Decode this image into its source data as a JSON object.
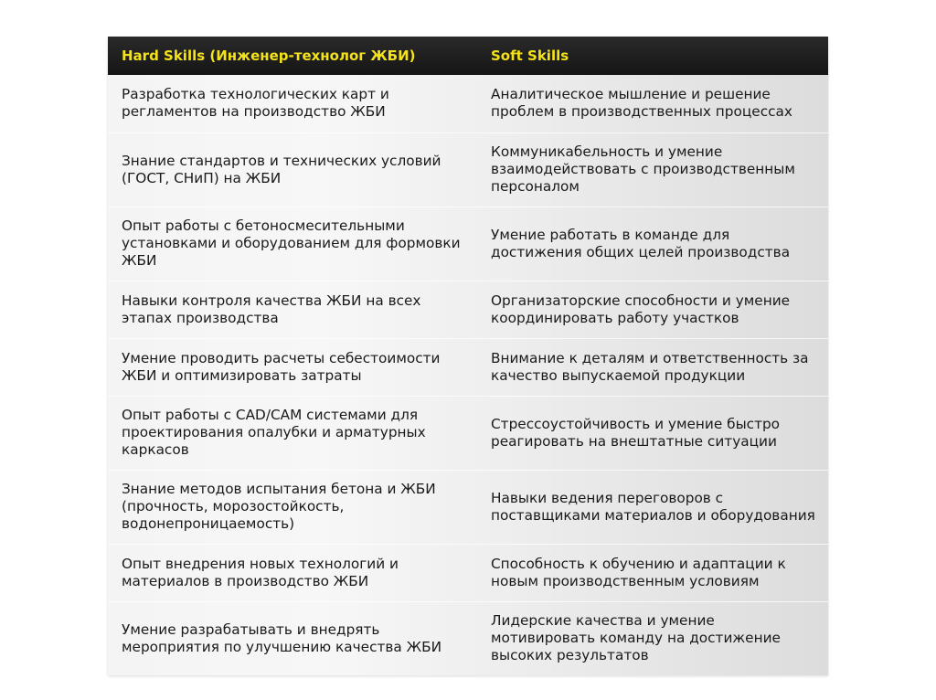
{
  "table": {
    "headers": [
      "Hard Skills (Инженер-технолог ЖБИ)",
      "Soft Skills"
    ],
    "rows": [
      {
        "hard": "Разработка технологических карт и регламентов на производство ЖБИ",
        "soft": "Аналитическое мышление и решение проблем в производственных процессах"
      },
      {
        "hard": "Знание стандартов и технических условий (ГОСТ, СНиП) на ЖБИ",
        "soft": "Коммуникабельность и умение взаимодействовать с производственным персоналом"
      },
      {
        "hard": "Опыт работы с бетоносмесительными установками и оборудованием для формовки ЖБИ",
        "soft": "Умение работать в команде для достижения общих целей производства"
      },
      {
        "hard": "Навыки контроля качества ЖБИ на всех этапах производства",
        "soft": "Организаторские способности и умение координировать работу участков"
      },
      {
        "hard": "Умение проводить расчеты себестоимости ЖБИ и оптимизировать затраты",
        "soft": "Внимание к деталям и ответственность за качество выпускаемой продукции"
      },
      {
        "hard": "Опыт работы с CAD/CAM системами для проектирования опалубки и арматурных каркасов",
        "soft": "Стрессоустойчивость и умение быстро реагировать на внештатные ситуации"
      },
      {
        "hard": "Знание методов испытания бетона и ЖБИ (прочность, морозостойкость, водонепроницаемость)",
        "soft": "Навыки ведения переговоров с поставщиками материалов и оборудования"
      },
      {
        "hard": "Опыт внедрения новых технологий и материалов в производство ЖБИ",
        "soft": "Способность к обучению и адаптации к новым производственным условиям"
      },
      {
        "hard": "Умение разрабатывать и внедрять мероприятия по улучшению качества ЖБИ",
        "soft": "Лидерские качества и умение мотивировать команду на достижение высоких результатов"
      }
    ]
  },
  "colors": {
    "header_bg": "#1e1e1e",
    "header_text": "#f4e21a"
  }
}
